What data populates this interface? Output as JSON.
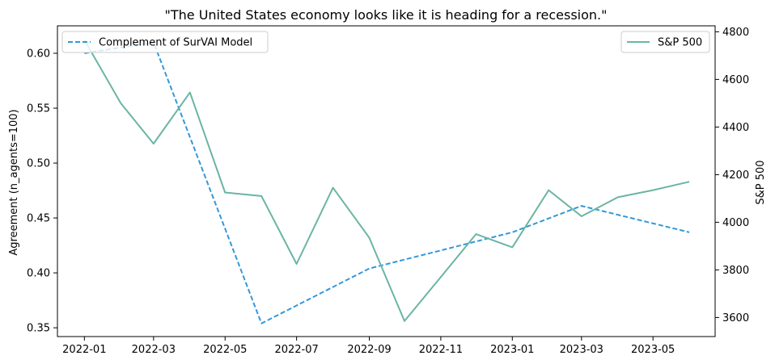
{
  "chart_data": {
    "type": "line",
    "title": "\"The United States economy looks like it is heading for a recession.\"",
    "xlabel": "",
    "ylabel": "Agreement (n_agents=100)",
    "y2label": "S&P 500",
    "x_ticks": [
      "2022-01",
      "2022-03",
      "2022-05",
      "2022-07",
      "2022-09",
      "2022-11",
      "2023-01",
      "2023-03",
      "2023-05"
    ],
    "y_ticks": [
      "0.35",
      "0.40",
      "0.45",
      "0.50",
      "0.55",
      "0.60"
    ],
    "y2_ticks": [
      "3600",
      "3800",
      "4000",
      "4200",
      "4400",
      "4600",
      "4800"
    ],
    "ylim": [
      0.342,
      0.625
    ],
    "y2lim": [
      3520,
      4825
    ],
    "xlim": [
      "2021-12-09",
      "2023-06-23"
    ],
    "grid": false,
    "series": [
      {
        "name": "Complement of SurVAI Model",
        "axis": "left",
        "color": "#3498db",
        "style": "dashed",
        "legend_position": "top-left",
        "x": [
          "2022-01-01",
          "2022-03-01",
          "2022-06-01",
          "2022-09-01",
          "2023-01-01",
          "2023-03-01",
          "2023-06-01"
        ],
        "values": [
          0.6,
          0.61,
          0.354,
          0.404,
          0.437,
          0.461,
          0.437
        ]
      },
      {
        "name": "S&P 500",
        "axis": "right",
        "color": "#6ab5a4",
        "style": "solid",
        "legend_position": "top-right",
        "x": [
          "2022-01-01",
          "2022-02-01",
          "2022-03-01",
          "2022-04-01",
          "2022-05-01",
          "2022-06-01",
          "2022-07-01",
          "2022-08-01",
          "2022-09-01",
          "2022-10-01",
          "2022-11-01",
          "2022-12-01",
          "2023-01-01",
          "2023-02-01",
          "2023-03-01",
          "2023-04-01",
          "2023-05-01",
          "2023-06-01"
        ],
        "values": [
          4766,
          4500,
          4330,
          4545,
          4125,
          4110,
          3825,
          4145,
          3935,
          3585,
          3770,
          3950,
          3895,
          4135,
          4025,
          4105,
          4135,
          4170
        ]
      }
    ]
  }
}
